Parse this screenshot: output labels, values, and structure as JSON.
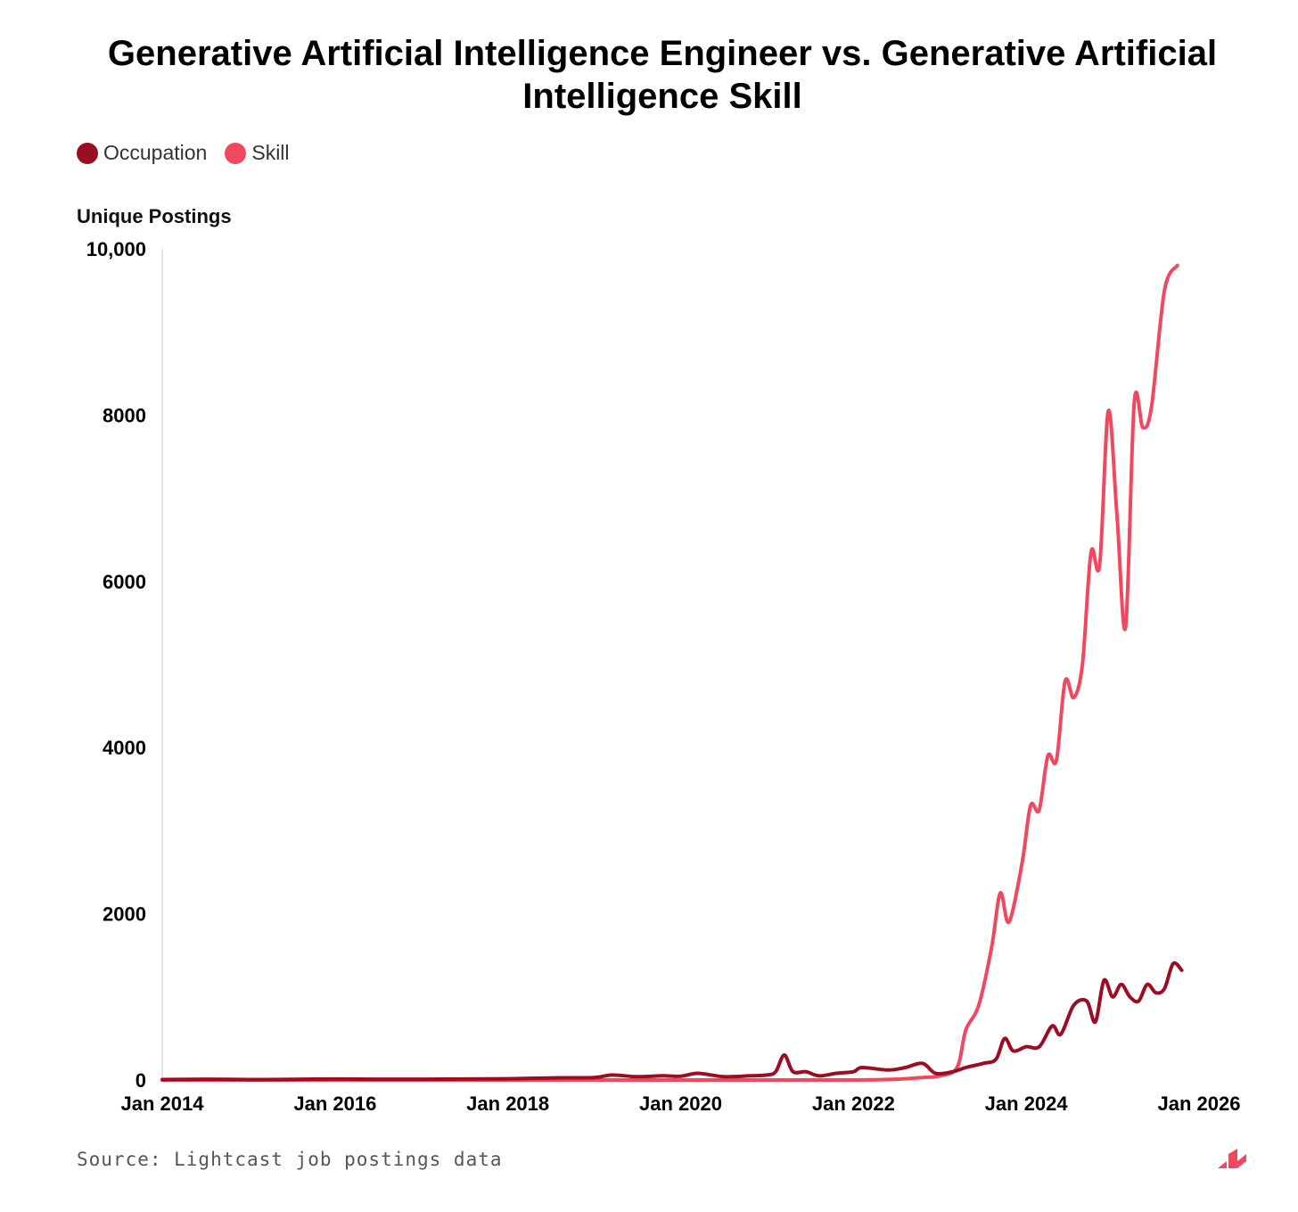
{
  "chart_data": {
    "type": "line",
    "title": "Generative Artificial Intelligence Engineer vs. Generative Artificial Intelligence Skill",
    "ylabel": "Unique Postings",
    "xlabel": "",
    "ylim": [
      0,
      10000
    ],
    "xlim": [
      2014.0,
      2026.0
    ],
    "y_ticks": [
      {
        "value": 0,
        "label": "0"
      },
      {
        "value": 2000,
        "label": "2000"
      },
      {
        "value": 4000,
        "label": "4000"
      },
      {
        "value": 6000,
        "label": "6000"
      },
      {
        "value": 8000,
        "label": "8000"
      },
      {
        "value": 10000,
        "label": "10,000"
      }
    ],
    "x_ticks": [
      {
        "value": 2014,
        "label": "Jan 2014"
      },
      {
        "value": 2016,
        "label": "Jan 2016"
      },
      {
        "value": 2018,
        "label": "Jan 2018"
      },
      {
        "value": 2020,
        "label": "Jan 2020"
      },
      {
        "value": 2022,
        "label": "Jan 2022"
      },
      {
        "value": 2024,
        "label": "Jan 2024"
      },
      {
        "value": 2026,
        "label": "Jan 2026"
      }
    ],
    "legend_position": "top-left",
    "series": [
      {
        "name": "Occupation",
        "color": "#9b0d22",
        "points": [
          [
            2014.0,
            5
          ],
          [
            2014.5,
            10
          ],
          [
            2015.0,
            5
          ],
          [
            2015.5,
            8
          ],
          [
            2016.0,
            12
          ],
          [
            2016.5,
            10
          ],
          [
            2017.0,
            10
          ],
          [
            2017.5,
            12
          ],
          [
            2018.0,
            15
          ],
          [
            2018.5,
            25
          ],
          [
            2019.0,
            30
          ],
          [
            2019.2,
            60
          ],
          [
            2019.5,
            40
          ],
          [
            2019.8,
            50
          ],
          [
            2020.0,
            45
          ],
          [
            2020.2,
            80
          ],
          [
            2020.5,
            40
          ],
          [
            2020.8,
            50
          ],
          [
            2021.0,
            60
          ],
          [
            2021.1,
            100
          ],
          [
            2021.2,
            300
          ],
          [
            2021.3,
            100
          ],
          [
            2021.45,
            100
          ],
          [
            2021.6,
            50
          ],
          [
            2021.8,
            80
          ],
          [
            2022.0,
            100
          ],
          [
            2022.1,
            150
          ],
          [
            2022.4,
            120
          ],
          [
            2022.6,
            150
          ],
          [
            2022.8,
            200
          ],
          [
            2022.95,
            80
          ],
          [
            2023.15,
            100
          ],
          [
            2023.3,
            150
          ],
          [
            2023.5,
            200
          ],
          [
            2023.65,
            250
          ],
          [
            2023.75,
            500
          ],
          [
            2023.85,
            350
          ],
          [
            2024.0,
            400
          ],
          [
            2024.15,
            400
          ],
          [
            2024.3,
            650
          ],
          [
            2024.4,
            550
          ],
          [
            2024.55,
            900
          ],
          [
            2024.7,
            950
          ],
          [
            2024.8,
            700
          ],
          [
            2024.9,
            1200
          ],
          [
            2025.0,
            1000
          ],
          [
            2025.1,
            1150
          ],
          [
            2025.2,
            1000
          ],
          [
            2025.3,
            950
          ],
          [
            2025.4,
            1150
          ],
          [
            2025.5,
            1050
          ],
          [
            2025.6,
            1100
          ],
          [
            2025.7,
            1400
          ],
          [
            2025.8,
            1320
          ]
        ]
      },
      {
        "name": "Skill",
        "color": "#f0485f",
        "points": [
          [
            2014.0,
            0
          ],
          [
            2016.0,
            0
          ],
          [
            2018.0,
            0
          ],
          [
            2020.0,
            0
          ],
          [
            2021.0,
            0
          ],
          [
            2022.0,
            0
          ],
          [
            2022.5,
            10
          ],
          [
            2022.8,
            30
          ],
          [
            2023.0,
            50
          ],
          [
            2023.2,
            150
          ],
          [
            2023.3,
            600
          ],
          [
            2023.45,
            900
          ],
          [
            2023.6,
            1600
          ],
          [
            2023.7,
            2250
          ],
          [
            2023.8,
            1900
          ],
          [
            2023.95,
            2600
          ],
          [
            2024.05,
            3300
          ],
          [
            2024.15,
            3250
          ],
          [
            2024.25,
            3900
          ],
          [
            2024.35,
            3850
          ],
          [
            2024.45,
            4800
          ],
          [
            2024.55,
            4600
          ],
          [
            2024.65,
            5000
          ],
          [
            2024.75,
            6350
          ],
          [
            2024.85,
            6200
          ],
          [
            2024.95,
            8050
          ],
          [
            2025.05,
            6800
          ],
          [
            2025.15,
            5450
          ],
          [
            2025.25,
            8150
          ],
          [
            2025.35,
            7850
          ],
          [
            2025.45,
            8100
          ],
          [
            2025.6,
            9500
          ],
          [
            2025.75,
            9800
          ]
        ]
      }
    ]
  },
  "source_text": "Source: Lightcast job postings data",
  "logo_icon": "lightcast-logo-icon",
  "accent_color": "#f0485f"
}
